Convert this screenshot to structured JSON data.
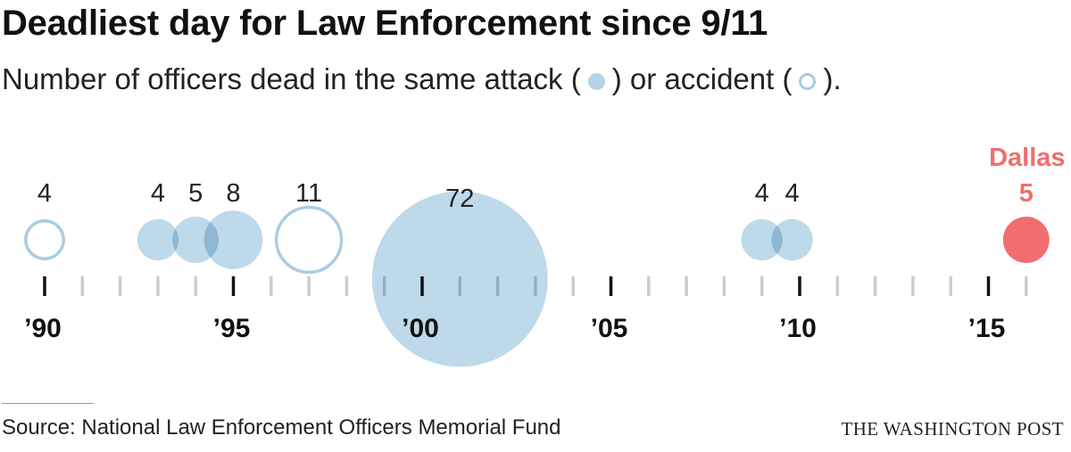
{
  "header": {
    "title": "Deadliest day for Law Enforcement since 9/11",
    "subtitle_pre": "Number of officers dead in the same attack (",
    "subtitle_mid": ") or accident (",
    "subtitle_post": ")."
  },
  "footer": {
    "source": "Source: National Law Enforcement Officers Memorial Fund",
    "credit": "THE WASHINGTON POST"
  },
  "colors": {
    "attack": "#b5d4e6",
    "accident_stroke": "#a9cde2",
    "highlight": "#f26d6d",
    "major_tick": "#111111",
    "minor_tick": "#cccccc"
  },
  "chart_data": {
    "type": "bubble-timeline",
    "x_range": [
      1990,
      2016
    ],
    "x_ticks": [
      {
        "year": 1990,
        "label": "’90"
      },
      {
        "year": 1995,
        "label": "’95"
      },
      {
        "year": 2000,
        "label": "’00"
      },
      {
        "year": 2005,
        "label": "’05"
      },
      {
        "year": 2010,
        "label": "’10"
      },
      {
        "year": 2015,
        "label": "’15"
      }
    ],
    "events": [
      {
        "year": 1990.0,
        "officers": 4,
        "kind": "accident",
        "label": "4"
      },
      {
        "year": 1993.0,
        "officers": 4,
        "kind": "attack",
        "label": "4"
      },
      {
        "year": 1994.0,
        "officers": 5,
        "kind": "attack",
        "label": "5"
      },
      {
        "year": 1995.0,
        "officers": 8,
        "kind": "attack",
        "label": "8"
      },
      {
        "year": 1997.0,
        "officers": 11,
        "kind": "accident",
        "label": "11"
      },
      {
        "year": 2001.0,
        "officers": 72,
        "kind": "attack",
        "label": "72"
      },
      {
        "year": 2009.0,
        "officers": 4,
        "kind": "attack",
        "label": "4"
      },
      {
        "year": 2009.8,
        "officers": 4,
        "kind": "attack",
        "label": "4"
      },
      {
        "year": 2016.0,
        "officers": 5,
        "kind": "attack",
        "label": "5",
        "highlight": true,
        "name": "Dallas"
      }
    ]
  }
}
